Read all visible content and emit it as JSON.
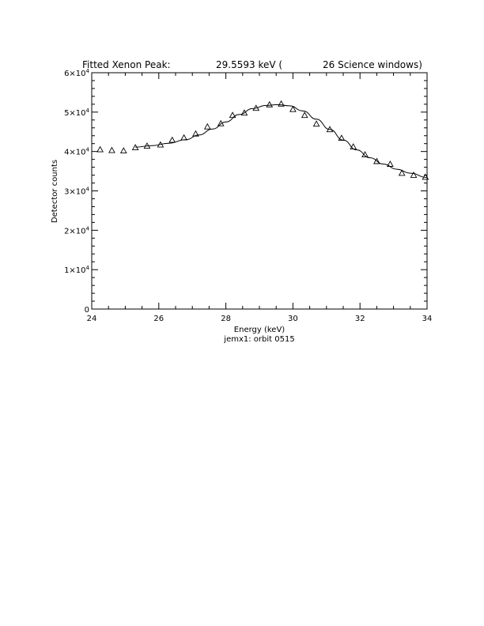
{
  "chart_data": {
    "type": "scatter",
    "title_parts": [
      "Fitted Xenon Peak:",
      "29.5593 keV (",
      "26 Science windows)"
    ],
    "xlabel": "Energy (keV)",
    "subtitle": "jemx1: orbit 0515",
    "ylabel": "Detector counts",
    "xlim": [
      24,
      34
    ],
    "ylim": [
      0,
      60000
    ],
    "x_ticks": [
      "24",
      "26",
      "28",
      "30",
      "32",
      "34"
    ],
    "x_tick_values": [
      24,
      26,
      28,
      30,
      32,
      34
    ],
    "y_ticks": [
      {
        "mant": "0",
        "exp": ""
      },
      {
        "mant": "1×10",
        "exp": "4"
      },
      {
        "mant": "2×10",
        "exp": "4"
      },
      {
        "mant": "3×10",
        "exp": "4"
      },
      {
        "mant": "4×10",
        "exp": "4"
      },
      {
        "mant": "5×10",
        "exp": "4"
      },
      {
        "mant": "6×10",
        "exp": "4"
      }
    ],
    "y_tick_values": [
      0,
      10000,
      20000,
      30000,
      40000,
      50000,
      60000
    ],
    "grid": false,
    "series": [
      {
        "marker": "triangle",
        "x": [
          24.25,
          24.6,
          24.95,
          25.3,
          25.65,
          26.05,
          26.4,
          26.75,
          27.1,
          27.45,
          27.85,
          28.2,
          28.55,
          28.9,
          29.3,
          29.65,
          30.0,
          30.35,
          30.7,
          31.1,
          31.45,
          31.8,
          32.15,
          32.5,
          32.9,
          33.25,
          33.6,
          33.95
        ],
        "y": [
          40500,
          40300,
          40200,
          41000,
          41400,
          41700,
          42900,
          43500,
          44500,
          46300,
          47100,
          49200,
          49800,
          51000,
          51900,
          52100,
          50700,
          49200,
          47000,
          45600,
          43400,
          41200,
          39200,
          37500,
          36800,
          34500,
          34000,
          33500
        ]
      },
      {
        "type": "line",
        "x": [
          25.3,
          25.8,
          26.3,
          26.8,
          27.2,
          27.6,
          28.0,
          28.4,
          28.8,
          29.2,
          29.5593,
          29.9,
          30.3,
          30.7,
          31.1,
          31.5,
          31.9,
          32.3,
          32.7,
          33.1,
          33.5,
          34.0
        ],
        "y": [
          41100,
          41500,
          42100,
          43000,
          44200,
          45700,
          47500,
          49400,
          50900,
          51700,
          51900,
          51600,
          50300,
          48200,
          45600,
          42900,
          40400,
          38400,
          36800,
          35500,
          34500,
          33400
        ]
      }
    ]
  }
}
